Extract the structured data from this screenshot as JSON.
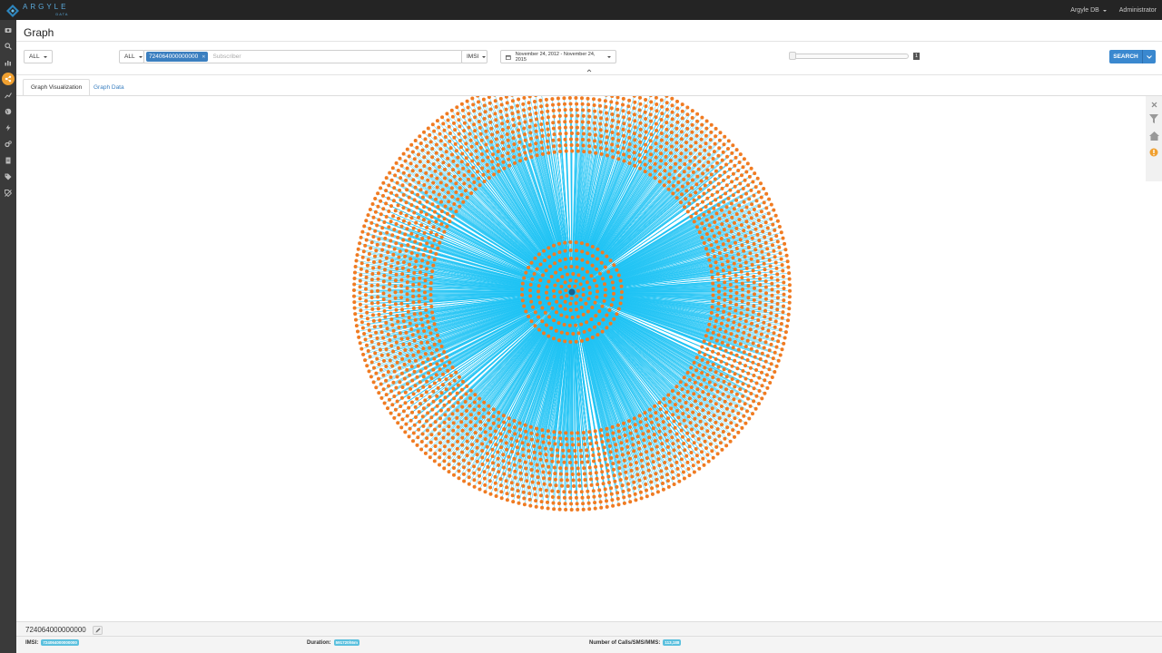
{
  "app": {
    "logo_text": "ARGYLE",
    "logo_sub": "DATA",
    "db_menu": "Argyle DB",
    "user_menu": "Administrator"
  },
  "sidebar": {
    "items": [
      {
        "name": "dashboard-icon"
      },
      {
        "name": "search-icon"
      },
      {
        "name": "bar-chart-icon"
      },
      {
        "name": "share-graph-icon",
        "active": true
      },
      {
        "name": "globe-icon"
      },
      {
        "name": "line-chart-icon"
      },
      {
        "name": "bolt-icon"
      },
      {
        "name": "cogs-icon"
      },
      {
        "name": "document-icon"
      },
      {
        "name": "tags-icon"
      },
      {
        "name": "tag-off-icon"
      }
    ]
  },
  "page": {
    "title": "Graph"
  },
  "toolbar": {
    "scope_label": "ALL",
    "search_scope_label": "ALL",
    "search_tag": "724064000000000",
    "search_placeholder": "Subscriber",
    "id_type_label": "IMSI",
    "date_range": "November 24, 2012 - November 24, 2015",
    "depth_value": "1",
    "search_button": "SEARCH"
  },
  "tabs": [
    {
      "label": "Graph Visualization",
      "active": true
    },
    {
      "label": "Graph Data",
      "active": false
    }
  ],
  "graph": {
    "node_color": "#f07b22",
    "edge_color": "#1ec3f5",
    "center_color": "#1a5f8a"
  },
  "right_tools": [
    {
      "name": "close-icon"
    },
    {
      "name": "filter-icon"
    },
    {
      "name": "home-icon"
    },
    {
      "name": "info-icon"
    }
  ],
  "footer": {
    "id": "724064000000000",
    "imsi_label": "IMSI:",
    "imsi_value": "724064000000000",
    "duration_label": "Duration:",
    "duration_value": "591720h5m",
    "count_label": "Number of Calls/SMS/MMS:",
    "count_value": "113,188"
  }
}
